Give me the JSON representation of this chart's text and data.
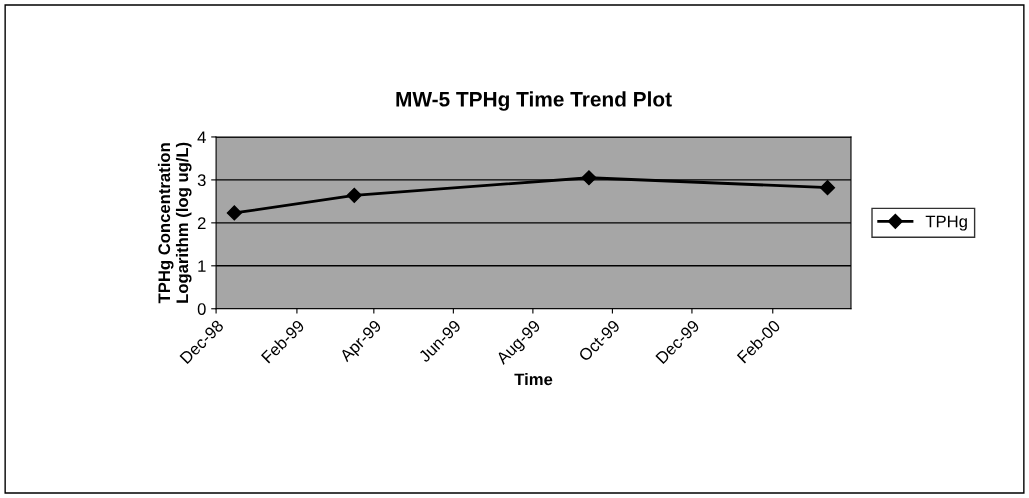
{
  "chart_data": {
    "type": "line",
    "title": "MW-5 TPHg Time Trend Plot",
    "xlabel": "Time",
    "ylabel": "TPHg Concentration\nLogarithm (log ug/L)",
    "x": [
      "1998-12-15",
      "1999-03-17",
      "1999-09-13",
      "2000-03-14"
    ],
    "series": [
      {
        "name": "TPHg",
        "color": "#000000",
        "values": [
          2.23,
          2.64,
          3.05,
          2.82
        ]
      }
    ],
    "xlim": [
      "1998-12-01",
      "2000-04-01"
    ],
    "xticks": [
      {
        "value": "1998-12-01",
        "label": "Dec-98"
      },
      {
        "value": "1999-02-01",
        "label": "Feb-99"
      },
      {
        "value": "1999-04-01",
        "label": "Apr-99"
      },
      {
        "value": "1999-06-01",
        "label": "Jun-99"
      },
      {
        "value": "1999-08-01",
        "label": "Aug-99"
      },
      {
        "value": "1999-10-01",
        "label": "Oct-99"
      },
      {
        "value": "1999-12-01",
        "label": "Dec-99"
      },
      {
        "value": "2000-02-01",
        "label": "Feb-00"
      }
    ],
    "ylim": [
      0,
      4
    ],
    "yticks": [
      0,
      1,
      2,
      3,
      4
    ],
    "grid": "y",
    "legend": "right",
    "marker": "diamond",
    "line_style": "solid"
  }
}
